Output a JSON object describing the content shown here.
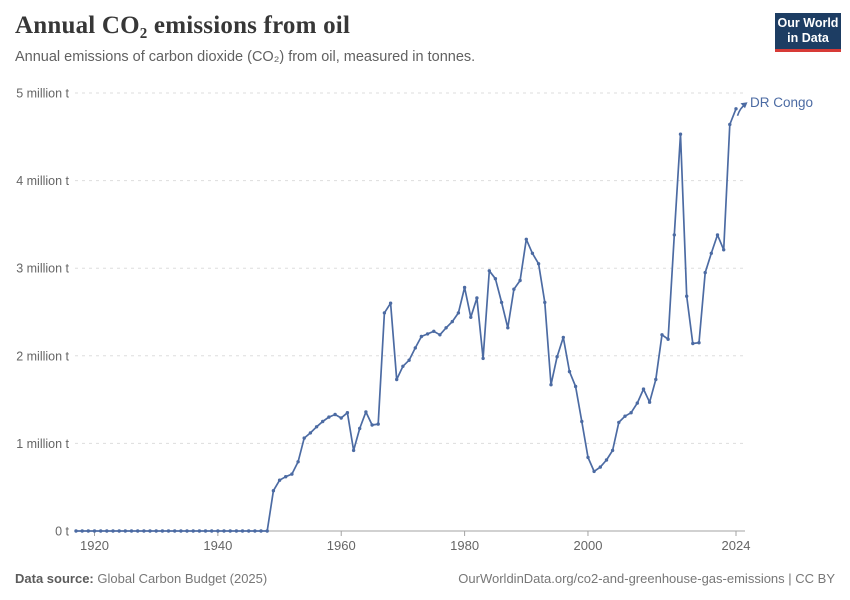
{
  "header": {
    "title": "Annual CO₂ emissions from oil",
    "subtitle": "Annual emissions of carbon dioxide (CO₂) from oil, measured in tonnes.",
    "logo": {
      "line1": "Our World",
      "line2": "in Data"
    }
  },
  "chart_data": {
    "type": "line",
    "title": "Annual CO₂ emissions from oil",
    "unit": "tonnes (shown in millions)",
    "grid": "horizontal dashed gridlines, light gray",
    "legend_position": "end-of-line entity label",
    "xlim": [
      1917,
      2024
    ],
    "ylim": [
      0,
      5000000
    ],
    "x_ticks": [
      1920,
      1940,
      1960,
      1980,
      2000,
      2024
    ],
    "y_ticks": [
      {
        "value": 0,
        "label": "0 t"
      },
      {
        "value": 1,
        "label": "1 million t"
      },
      {
        "value": 2,
        "label": "2 million t"
      },
      {
        "value": 3,
        "label": "3 million t"
      },
      {
        "value": 4,
        "label": "4 million t"
      },
      {
        "value": 5,
        "label": "5 million t"
      }
    ],
    "series": [
      {
        "name": "DR Congo",
        "color": "#4c6ba3",
        "start_year": 1917,
        "end_year": 2024,
        "values_million_t": [
          0,
          0,
          0,
          0,
          0,
          0,
          0,
          0,
          0,
          0,
          0,
          0,
          0,
          0,
          0,
          0,
          0,
          0,
          0,
          0,
          0,
          0,
          0,
          0,
          0,
          0,
          0,
          0,
          0,
          0,
          0,
          0,
          0.46,
          0.58,
          0.62,
          0.65,
          0.79,
          1.06,
          1.12,
          1.19,
          1.25,
          1.3,
          1.33,
          1.29,
          1.35,
          0.92,
          1.17,
          1.36,
          1.21,
          1.22,
          2.49,
          2.6,
          1.73,
          1.88,
          1.95,
          2.09,
          2.22,
          2.25,
          2.28,
          2.24,
          2.32,
          2.39,
          2.49,
          2.78,
          2.44,
          2.66,
          1.97,
          2.97,
          2.88,
          2.61,
          2.32,
          2.76,
          2.86,
          3.33,
          3.17,
          3.05,
          2.61,
          1.67,
          1.99,
          2.21,
          1.82,
          1.65,
          1.25,
          0.84,
          0.68,
          0.73,
          0.81,
          0.92,
          1.24,
          1.31,
          1.35,
          1.46,
          1.62,
          1.47,
          1.73,
          2.24,
          2.19,
          3.38,
          4.53,
          2.68,
          2.14,
          2.15,
          2.95,
          3.17,
          3.38,
          3.21,
          4.64,
          4.82
        ]
      }
    ],
    "colors": {
      "line": "#4c6ba3",
      "gridline": "#dddddd",
      "axis": "#a3a3a3",
      "tick_label": "#666666"
    }
  },
  "footer": {
    "source_label": "Data source:",
    "source_value": "Global Carbon Budget (2025)",
    "link": "OurWorldinData.org/co2-and-greenhouse-gas-emissions | CC BY"
  }
}
